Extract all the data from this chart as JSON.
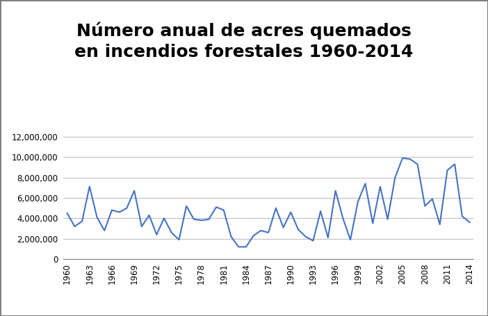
{
  "title": "Número anual de acres quemados\nen incendios forestales 1960-2014",
  "title_fontsize": 18,
  "title_fontweight": "bold",
  "line_color": "#4472C4",
  "line_width": 1.5,
  "background_color": "#ffffff",
  "grid_color": "#bfbfbf",
  "ylim": [
    0,
    13000000
  ],
  "yticks": [
    0,
    2000000,
    4000000,
    6000000,
    8000000,
    10000000,
    12000000
  ],
  "xtick_labels": [
    "1960",
    "1963",
    "1966",
    "1969",
    "1972",
    "1975",
    "1978",
    "1981",
    "1984",
    "1987",
    "1990",
    "1993",
    "1996",
    "1999",
    "2002",
    "2005",
    "2008",
    "2011",
    "2014"
  ],
  "years": [
    1960,
    1961,
    1962,
    1963,
    1964,
    1965,
    1966,
    1967,
    1968,
    1969,
    1970,
    1971,
    1972,
    1973,
    1974,
    1975,
    1976,
    1977,
    1978,
    1979,
    1980,
    1981,
    1982,
    1983,
    1984,
    1985,
    1986,
    1987,
    1988,
    1989,
    1990,
    1991,
    1992,
    1993,
    1994,
    1995,
    1996,
    1997,
    1998,
    1999,
    2000,
    2001,
    2002,
    2003,
    2004,
    2005,
    2006,
    2007,
    2008,
    2009,
    2010,
    2011,
    2012,
    2013,
    2014
  ],
  "values": [
    4500000,
    3200000,
    3700000,
    7120000,
    4100000,
    2800000,
    4800000,
    4600000,
    5000000,
    6700000,
    3200000,
    4300000,
    2400000,
    4000000,
    2600000,
    1900000,
    5200000,
    3900000,
    3800000,
    3900000,
    5100000,
    4800000,
    2200000,
    1200000,
    1200000,
    2300000,
    2800000,
    2600000,
    5000000,
    3100000,
    4600000,
    2900000,
    2200000,
    1800000,
    4700000,
    2100000,
    6700000,
    4000000,
    1900000,
    5600000,
    7400000,
    3500000,
    7100000,
    3900000,
    8000000,
    9900000,
    9800000,
    9300000,
    5200000,
    5900000,
    3400000,
    8700000,
    9300000,
    4200000,
    3600000
  ],
  "border_color": "#808080"
}
